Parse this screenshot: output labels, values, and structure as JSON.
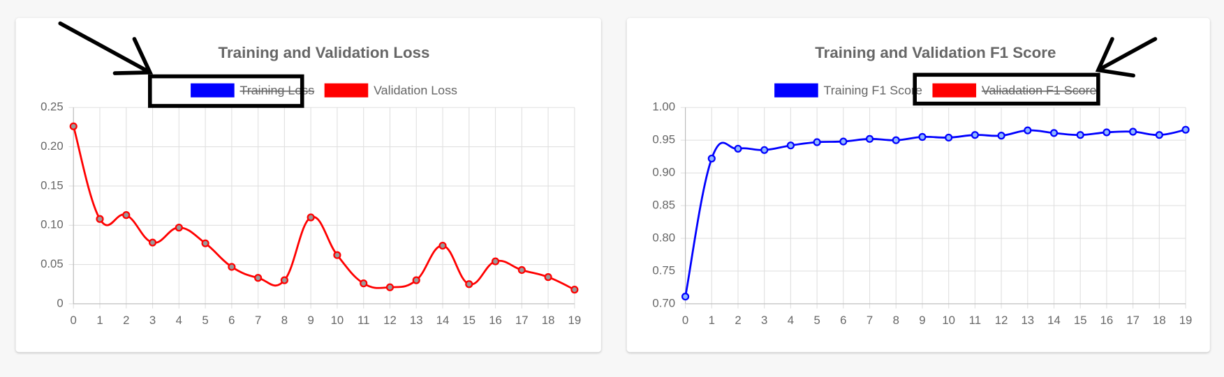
{
  "chart_data": [
    {
      "type": "line",
      "title": "Training and Validation Loss",
      "categories": [
        "0",
        "1",
        "2",
        "3",
        "4",
        "5",
        "6",
        "7",
        "8",
        "9",
        "10",
        "11",
        "12",
        "13",
        "14",
        "15",
        "16",
        "17",
        "18",
        "19"
      ],
      "series": [
        {
          "name": "Training Loss",
          "color": "#0000ff",
          "point_color": "#8080ff",
          "hidden": true,
          "values": [
            null,
            null,
            null,
            null,
            null,
            null,
            null,
            null,
            null,
            null,
            null,
            null,
            null,
            null,
            null,
            null,
            null,
            null,
            null,
            null
          ]
        },
        {
          "name": "Validation Loss",
          "color": "#ff0000",
          "point_color": "#999999",
          "hidden": false,
          "values": [
            0.226,
            0.108,
            0.113,
            0.078,
            0.097,
            0.077,
            0.047,
            0.033,
            0.03,
            0.11,
            0.062,
            0.026,
            0.021,
            0.03,
            0.074,
            0.025,
            0.054,
            0.043,
            0.034,
            0.018
          ]
        }
      ],
      "ylim": [
        0,
        0.25
      ],
      "yticks": [
        0,
        0.05,
        {
          "value": 0.1,
          "label": "0.10"
        },
        0.15,
        {
          "value": 0.2,
          "label": "0.20"
        },
        0.25
      ],
      "grid": true,
      "legend": "top"
    },
    {
      "type": "line",
      "title": "Training and Validation F1 Score",
      "categories": [
        "0",
        "1",
        "2",
        "3",
        "4",
        "5",
        "6",
        "7",
        "8",
        "9",
        "10",
        "11",
        "12",
        "13",
        "14",
        "15",
        "16",
        "17",
        "18",
        "19"
      ],
      "series": [
        {
          "name": "Training F1 Score",
          "color": "#0000ff",
          "point_color": "#8fb8ff",
          "hidden": false,
          "values": [
            0.711,
            0.922,
            0.937,
            0.935,
            0.942,
            0.947,
            0.948,
            0.952,
            0.95,
            0.955,
            0.954,
            0.958,
            0.957,
            0.965,
            0.961,
            0.958,
            0.962,
            0.963,
            0.958,
            0.966
          ]
        },
        {
          "name": "Valiadation F1 Score",
          "color": "#ff0000",
          "point_color": "#ff8080",
          "hidden": true,
          "values": [
            null,
            null,
            null,
            null,
            null,
            null,
            null,
            null,
            null,
            null,
            null,
            null,
            null,
            null,
            null,
            null,
            null,
            null,
            null,
            null
          ]
        }
      ],
      "ylim": [
        0.7,
        1
      ],
      "yticks": [
        {
          "value": 0.7,
          "label": "0.70"
        },
        0.75,
        {
          "value": 0.8,
          "label": "0.80"
        },
        0.85,
        {
          "value": 0.9,
          "label": "0.90"
        },
        0.95,
        {
          "value": 1,
          "label": "1.00"
        }
      ],
      "grid": true,
      "legend": "top"
    }
  ]
}
